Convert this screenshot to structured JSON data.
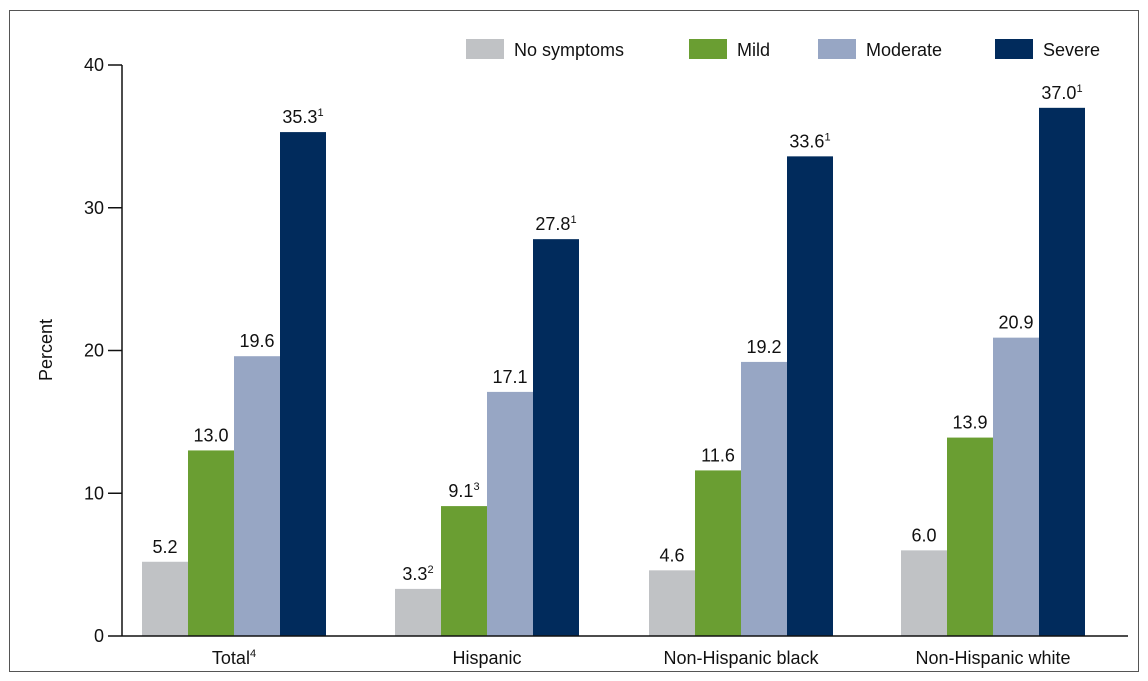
{
  "chart_data": {
    "type": "bar",
    "ylabel": "Percent",
    "ylim": [
      0,
      40
    ],
    "yticks": [
      0,
      10,
      20,
      30,
      40
    ],
    "grid": false,
    "legend_position": "top-right",
    "categories": [
      {
        "label": "Total",
        "sup": "4"
      },
      {
        "label": "Hispanic",
        "sup": ""
      },
      {
        "label": "Non-Hispanic black",
        "sup": ""
      },
      {
        "label": "Non-Hispanic white",
        "sup": ""
      }
    ],
    "series": [
      {
        "name": "No symptoms",
        "color": "#c0c2c5",
        "values": [
          5.2,
          3.3,
          4.6,
          6.0
        ],
        "labels": [
          "5.2",
          "3.3",
          "4.6",
          "6.0"
        ],
        "sups": [
          "",
          "2",
          "",
          ""
        ]
      },
      {
        "name": "Mild",
        "color": "#6a9e32",
        "values": [
          13.0,
          9.1,
          11.6,
          13.9
        ],
        "labels": [
          "13.0",
          "9.1",
          "11.6",
          "13.9"
        ],
        "sups": [
          "",
          "3",
          "",
          ""
        ]
      },
      {
        "name": "Moderate",
        "color": "#97a6c4",
        "values": [
          19.6,
          17.1,
          19.2,
          20.9
        ],
        "labels": [
          "19.6",
          "17.1",
          "19.2",
          "20.9"
        ],
        "sups": [
          "",
          "",
          "",
          ""
        ]
      },
      {
        "name": "Severe",
        "color": "#012b5c",
        "values": [
          35.3,
          27.8,
          33.6,
          37.0
        ],
        "labels": [
          "35.3",
          "27.8",
          "33.6",
          "37.0"
        ],
        "sups": [
          "1",
          "1",
          "1",
          "1"
        ]
      }
    ]
  }
}
